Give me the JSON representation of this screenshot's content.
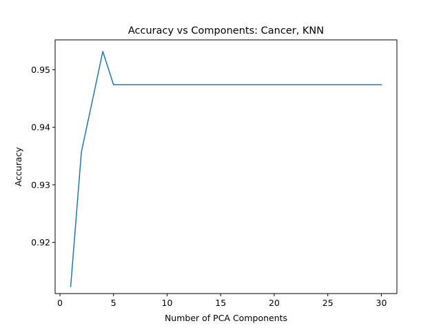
{
  "chart_data": {
    "type": "line",
    "title": "Accuracy vs Components: Cancer, KNN",
    "xlabel": "Number of PCA Components",
    "ylabel": "Accuracy",
    "xlim": [
      -0.45,
      31.45
    ],
    "ylim": [
      0.9111,
      0.9552
    ],
    "xticks": [
      0,
      5,
      10,
      15,
      20,
      25,
      30
    ],
    "xtick_labels": [
      "0",
      "5",
      "10",
      "15",
      "20",
      "25",
      "30"
    ],
    "yticks": [
      0.92,
      0.93,
      0.94,
      0.95
    ],
    "ytick_labels": [
      "0.92",
      "0.93",
      "0.94",
      "0.95"
    ],
    "grid": false,
    "series": [
      {
        "color": "#1f77b4",
        "x": [
          1,
          2,
          3,
          4,
          5,
          6,
          7,
          8,
          9,
          10,
          11,
          12,
          13,
          14,
          15,
          16,
          17,
          18,
          19,
          20,
          21,
          22,
          23,
          24,
          25,
          26,
          27,
          28,
          29,
          30
        ],
        "y": [
          0.9123,
          0.9357,
          0.9444,
          0.9532,
          0.9474,
          0.9474,
          0.9474,
          0.9474,
          0.9474,
          0.9474,
          0.9474,
          0.9474,
          0.9474,
          0.9474,
          0.9474,
          0.9474,
          0.9474,
          0.9474,
          0.9474,
          0.9474,
          0.9474,
          0.9474,
          0.9474,
          0.9474,
          0.9474,
          0.9474,
          0.9474,
          0.9474,
          0.9474,
          0.9474
        ]
      }
    ]
  }
}
